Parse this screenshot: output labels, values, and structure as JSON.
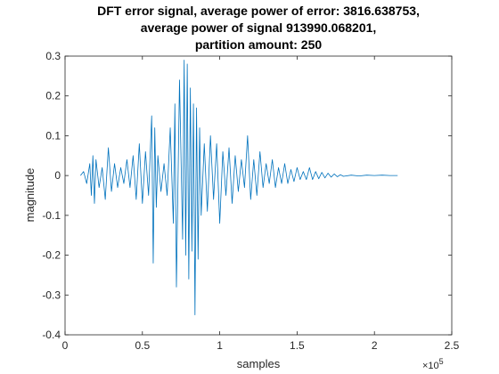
{
  "chart_data": {
    "type": "line",
    "title_lines": [
      "DFT error signal, average power of error: 3816.638753,",
      "average power of signal 913990.068201,",
      "partition amount: 250"
    ],
    "xlabel": "samples",
    "ylabel": "magnitude",
    "x_exponent_label": "10",
    "x_exponent_power": "5",
    "xlim": [
      0,
      250000
    ],
    "ylim": [
      -0.4,
      0.3
    ],
    "x_ticks": [
      0,
      50000,
      100000,
      150000,
      200000,
      250000
    ],
    "x_tick_labels": [
      "0",
      "0.5",
      "1",
      "1.5",
      "2",
      "2.5"
    ],
    "y_ticks": [
      -0.4,
      -0.3,
      -0.2,
      -0.1,
      0,
      0.1,
      0.2,
      0.3
    ],
    "y_tick_labels": [
      "-0.4",
      "-0.3",
      "-0.2",
      "-0.1",
      "0",
      "0.1",
      "0.2",
      "0.3"
    ],
    "grid": false,
    "line_color": "#0072BD",
    "series": [
      {
        "x": [
          10000,
          12000,
          14000,
          16000,
          17000,
          18000,
          19000,
          20000,
          22000,
          24000,
          26000,
          28000,
          30000,
          32000,
          34000,
          36000,
          38000,
          40000,
          42000,
          44000,
          46000,
          48000,
          50000,
          52000,
          54000,
          56000,
          57000,
          58000,
          59000,
          60000,
          62000,
          64000,
          66000,
          68000,
          70000,
          71000,
          72000,
          74000,
          76000,
          77000,
          78000,
          79000,
          80000,
          81000,
          82000,
          83000,
          84000,
          85000,
          86000,
          87000,
          88000,
          90000,
          92000,
          94000,
          96000,
          98000,
          100000,
          102000,
          104000,
          106000,
          108000,
          110000,
          112000,
          114000,
          116000,
          118000,
          120000,
          122000,
          124000,
          126000,
          128000,
          130000,
          132000,
          134000,
          136000,
          138000,
          140000,
          142000,
          144000,
          146000,
          148000,
          150000,
          152000,
          154000,
          156000,
          158000,
          160000,
          162000,
          164000,
          166000,
          168000,
          170000,
          172000,
          174000,
          176000,
          178000,
          180000,
          185000,
          190000,
          195000,
          200000,
          205000,
          210000,
          215000
        ],
        "y": [
          0,
          0.01,
          -0.02,
          0.03,
          -0.05,
          0.05,
          -0.07,
          0.04,
          -0.03,
          0.02,
          -0.06,
          0.07,
          -0.04,
          0.03,
          -0.03,
          0.02,
          -0.02,
          0.04,
          -0.03,
          0.05,
          -0.06,
          0.08,
          -0.07,
          0.06,
          -0.05,
          0.15,
          -0.22,
          0.12,
          -0.08,
          0.05,
          -0.04,
          0.03,
          -0.05,
          0.12,
          -0.12,
          0.18,
          -0.28,
          0.24,
          -0.16,
          0.29,
          -0.2,
          0.28,
          -0.26,
          0.22,
          -0.19,
          0.18,
          -0.35,
          0.17,
          -0.21,
          0.12,
          -0.1,
          0.08,
          -0.09,
          0.1,
          -0.06,
          0.08,
          -0.12,
          0.06,
          -0.05,
          0.07,
          -0.07,
          0.05,
          -0.04,
          0.04,
          -0.03,
          0.1,
          -0.06,
          0.04,
          -0.05,
          0.06,
          -0.03,
          0.03,
          -0.02,
          0.04,
          -0.03,
          0.02,
          -0.02,
          0.03,
          -0.02,
          0.015,
          -0.015,
          0.02,
          -0.01,
          0.01,
          -0.01,
          0.02,
          -0.01,
          0.01,
          -0.008,
          0.008,
          -0.006,
          0.006,
          -0.004,
          0.004,
          -0.003,
          0.002,
          -0.002,
          0.001,
          -0.001,
          0.001,
          0,
          0.001,
          0,
          0
        ]
      }
    ]
  }
}
